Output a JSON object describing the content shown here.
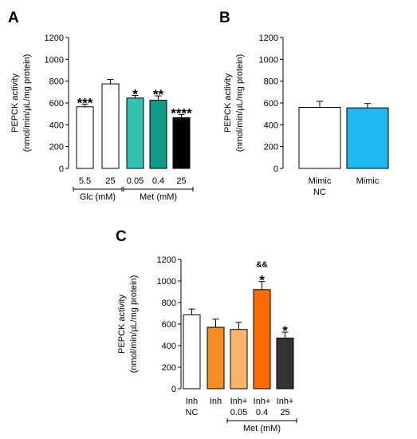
{
  "chart_data": [
    {
      "panel": "A",
      "type": "bar",
      "ylabel": [
        "PEPCK activity",
        "(nmol/min/μL/mg protein)"
      ],
      "ylim": [
        0,
        1200
      ],
      "yticks": [
        "0",
        "200",
        "400",
        "600",
        "800",
        "1000",
        "1200"
      ],
      "categories": [
        [
          "5.5"
        ],
        [
          "25"
        ],
        [
          "0.05"
        ],
        [
          "0.4"
        ],
        [
          "25"
        ]
      ],
      "values": [
        565,
        775,
        645,
        625,
        465
      ],
      "errors": [
        25,
        40,
        25,
        40,
        30
      ],
      "colors": [
        "#ffffff",
        "#ffffff",
        "#35c2b5",
        "#119a88",
        "#000000"
      ],
      "significance": [
        [
          "***"
        ],
        [],
        [
          "*"
        ],
        [
          "**"
        ],
        [
          "****"
        ]
      ],
      "groups": [
        {
          "label": "Glc (mM)",
          "from": 0,
          "to": 1
        },
        {
          "label": "Met (mM)",
          "from": 2,
          "to": 4
        }
      ]
    },
    {
      "panel": "B",
      "type": "bar",
      "ylabel": [
        "PEPCK activity",
        "(nmol/min/μL/mg protein)"
      ],
      "ylim": [
        0,
        1200
      ],
      "yticks": [
        "0",
        "200",
        "400",
        "600",
        "800",
        "1000",
        "1200"
      ],
      "categories": [
        [
          "Mimic",
          "NC"
        ],
        [
          "Mimic"
        ]
      ],
      "values": [
        560,
        555
      ],
      "errors": [
        55,
        40
      ],
      "colors": [
        "#ffffff",
        "#1fb8ee"
      ],
      "significance": [
        [],
        []
      ],
      "groups": []
    },
    {
      "panel": "C",
      "type": "bar",
      "ylabel": [
        "PEPCK activity",
        "(nmol/min/μL/mg protein)"
      ],
      "ylim": [
        0,
        1200
      ],
      "yticks": [
        "0",
        "200",
        "400",
        "600",
        "800",
        "1000",
        "1200"
      ],
      "categories": [
        [
          "Inh",
          "NC"
        ],
        [
          "Inh"
        ],
        [
          "Inh+",
          "0.05"
        ],
        [
          "Inh+",
          "0.4"
        ],
        [
          "Inh+",
          "25"
        ]
      ],
      "values": [
        685,
        570,
        550,
        920,
        470
      ],
      "errors": [
        55,
        75,
        65,
        75,
        55
      ],
      "colors": [
        "#ffffff",
        "#f58c1f",
        "#fdb46a",
        "#ff6a00",
        "#333333"
      ],
      "significance": [
        [],
        [],
        [],
        [
          "&&",
          "*"
        ],
        [
          "*"
        ]
      ],
      "groups": [
        {
          "label": "Met (mM)",
          "from": 2,
          "to": 4
        }
      ]
    }
  ]
}
